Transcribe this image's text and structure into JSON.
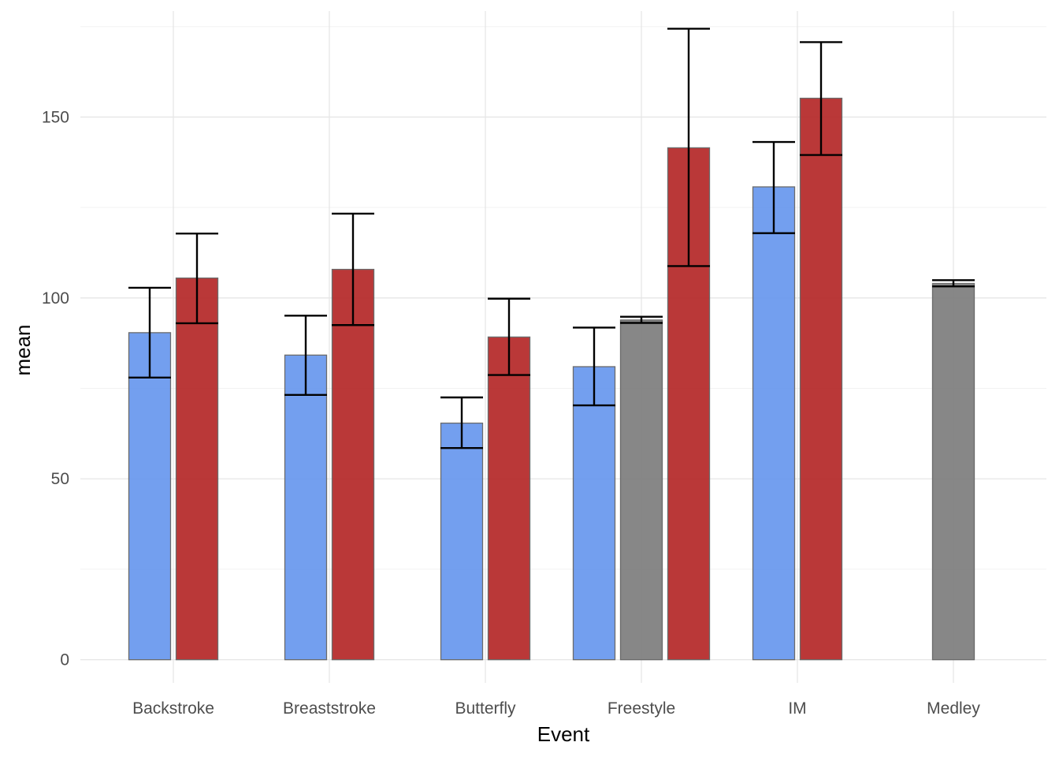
{
  "chart_data": {
    "type": "bar",
    "title": "",
    "xlabel": "Event",
    "ylabel": "mean",
    "ylim": [
      -6.4,
      179.3
    ],
    "y_ticks": [
      0,
      50,
      100,
      150
    ],
    "y_minor_ticks": [
      25,
      75,
      125,
      175
    ],
    "grid": true,
    "legend": "none",
    "categories": [
      "Backstroke",
      "Breaststroke",
      "Butterfly",
      "Freestyle",
      "IM",
      "Medley"
    ],
    "groups": [
      {
        "category": "Backstroke",
        "slots": 2,
        "bars": [
          {
            "slot": 0,
            "color": "#6495ED",
            "mean": 90.4,
            "lower": 78.0,
            "upper": 102.8
          },
          {
            "slot": 1,
            "color": "#B22222",
            "mean": 105.5,
            "lower": 93.0,
            "upper": 117.8
          }
        ]
      },
      {
        "category": "Breaststroke",
        "slots": 2,
        "bars": [
          {
            "slot": 0,
            "color": "#6495ED",
            "mean": 84.2,
            "lower": 73.2,
            "upper": 95.1
          },
          {
            "slot": 1,
            "color": "#B22222",
            "mean": 107.9,
            "lower": 92.5,
            "upper": 123.3
          }
        ]
      },
      {
        "category": "Butterfly",
        "slots": 2,
        "bars": [
          {
            "slot": 0,
            "color": "#6495ED",
            "mean": 65.4,
            "lower": 58.5,
            "upper": 72.5
          },
          {
            "slot": 1,
            "color": "#B22222",
            "mean": 89.2,
            "lower": 78.7,
            "upper": 99.8
          }
        ]
      },
      {
        "category": "Freestyle",
        "slots": 3,
        "bars": [
          {
            "slot": 0,
            "color": "#6495ED",
            "mean": 81.0,
            "lower": 70.3,
            "upper": 91.8
          },
          {
            "slot": 1,
            "color": "#7A7A7A",
            "mean": 93.9,
            "lower": 93.1,
            "upper": 94.8
          },
          {
            "slot": 2,
            "color": "#B22222",
            "mean": 141.5,
            "lower": 108.8,
            "upper": 174.4
          }
        ]
      },
      {
        "category": "IM",
        "slots": 2,
        "bars": [
          {
            "slot": 0,
            "color": "#6495ED",
            "mean": 130.7,
            "lower": 117.9,
            "upper": 143.1
          },
          {
            "slot": 1,
            "color": "#B22222",
            "mean": 155.2,
            "lower": 139.5,
            "upper": 170.7
          }
        ]
      },
      {
        "category": "Medley",
        "slots": 1,
        "bars": [
          {
            "slot": 0,
            "color": "#7A7A7A",
            "mean": 104.0,
            "lower": 103.2,
            "upper": 104.9
          }
        ]
      }
    ]
  }
}
